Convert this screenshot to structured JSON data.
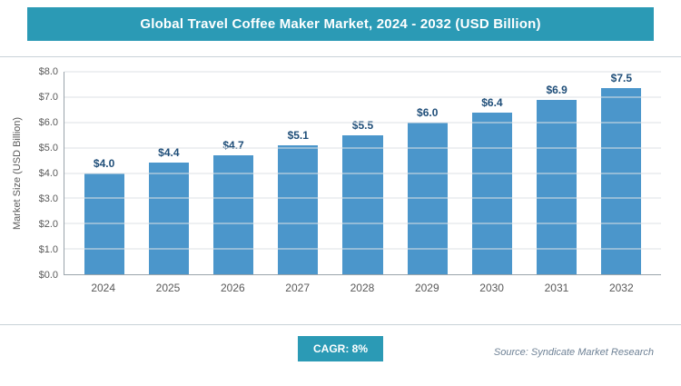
{
  "header": {
    "title": "Global Travel Coffee Maker Market, 2024 - 2032 (USD Billion)"
  },
  "chart_data": {
    "type": "bar",
    "title": "Global Travel Coffee Maker Market, 2024 - 2032 (USD Billion)",
    "categories": [
      "2024",
      "2025",
      "2026",
      "2027",
      "2028",
      "2029",
      "2030",
      "2031",
      "2032"
    ],
    "values": [
      4.0,
      4.4,
      4.7,
      5.1,
      5.5,
      6.0,
      6.4,
      6.9,
      7.5
    ],
    "value_labels": [
      "$4.0",
      "$4.4",
      "$4.7",
      "$5.1",
      "$5.5",
      "$6.0",
      "$6.4",
      "$6.9",
      "$7.5"
    ],
    "xlabel": "",
    "ylabel": "Market Size (USD Billion)",
    "ylim": [
      0,
      8
    ],
    "ytick_step": 1,
    "ytick_labels": [
      "$0.0",
      "$1.0",
      "$2.0",
      "$3.0",
      "$4.0",
      "$5.0",
      "$6.0",
      "$7.0",
      "$8.0"
    ],
    "grid": true,
    "legend": false,
    "bar_color": "#4b96cb"
  },
  "footer": {
    "cagr_label": "CAGR: 8%",
    "source": "Source: Syndicate Market Research"
  },
  "colors": {
    "accent_teal": "#2b9ab5",
    "bar_blue": "#4b96cb",
    "value_label_navy": "#1f4e79",
    "axis_text_gray": "#595959"
  }
}
